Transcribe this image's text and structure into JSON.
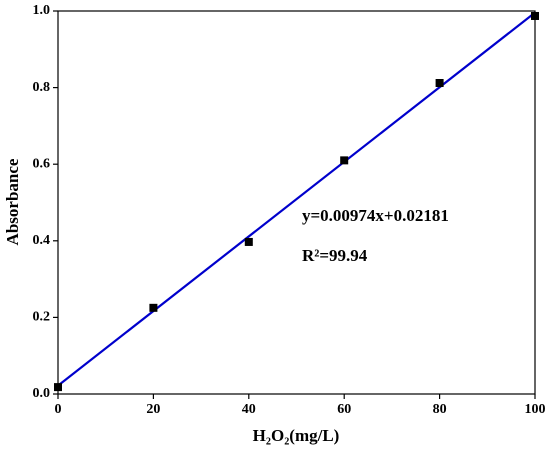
{
  "chart_data": {
    "type": "scatter",
    "x_label": "H₂O₂(mg/L)",
    "y_label": "Absorbance",
    "annotations": [
      "y=0.00974x+0.02181",
      "R²=99.94"
    ],
    "series": [
      {
        "x": [
          0,
          20,
          40,
          60,
          80,
          100
        ],
        "values": [
          0.018,
          0.225,
          0.397,
          0.61,
          0.812,
          0.987
        ],
        "color": "#000000"
      }
    ],
    "fit_line": {
      "x": [
        0,
        100
      ],
      "values": [
        0.02181,
        0.99581
      ],
      "color": "#0000cc"
    },
    "xlim": [
      0,
      100
    ],
    "xticks": [
      0,
      20,
      40,
      60,
      80,
      100
    ],
    "ylim": [
      0,
      1
    ],
    "yticks": [
      {
        "value": 0,
        "label": "0.0"
      },
      0.2,
      0.4,
      0.6,
      0.8,
      {
        "value": 1,
        "label": "1.0"
      }
    ],
    "grid": false
  }
}
